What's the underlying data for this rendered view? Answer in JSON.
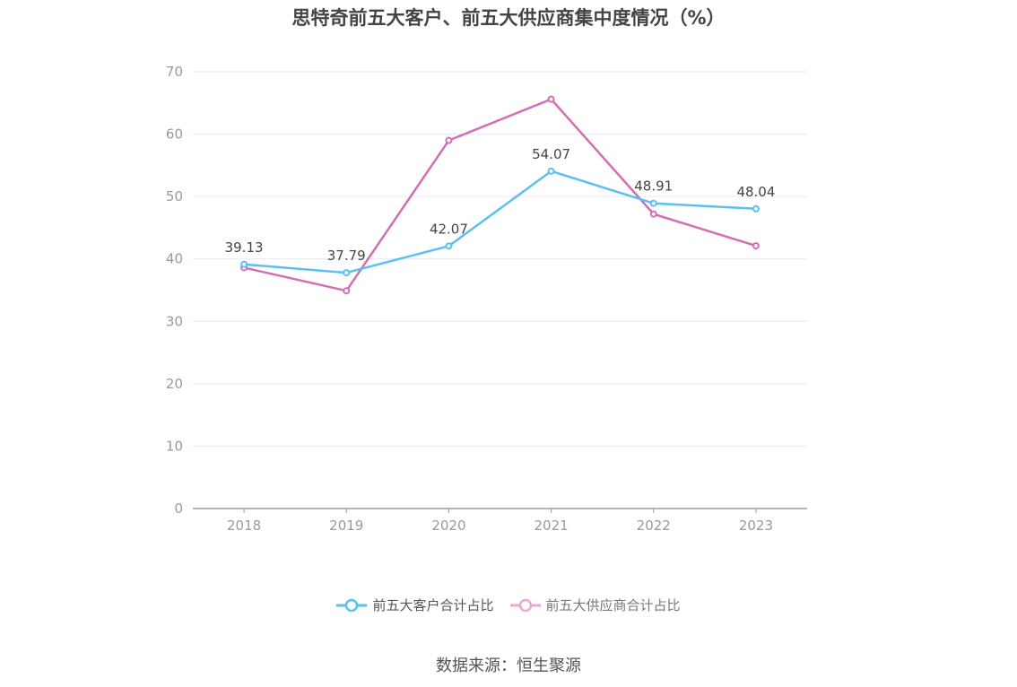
{
  "title": "思特奇前五大客户、前五大供应商集中度情况（%）",
  "source": "数据来源：恒生聚源",
  "chart_data": {
    "type": "line",
    "title": "思特奇前五大客户、前五大供应商集中度情况（%）",
    "categories": [
      "2018",
      "2019",
      "2020",
      "2021",
      "2022",
      "2023"
    ],
    "series": [
      {
        "name": "前五大客户合计占比",
        "color": "#5bc0f0",
        "values": [
          39.13,
          37.79,
          42.07,
          54.07,
          48.91,
          48.04
        ],
        "show_labels": true
      },
      {
        "name": "前五大供应商合计占比",
        "color": "#d56db5",
        "values": [
          38.6,
          34.9,
          59.0,
          65.6,
          47.2,
          42.1
        ],
        "show_labels": false
      }
    ],
    "ylim": [
      0,
      70
    ],
    "yticks": [
      "0",
      "10",
      "20",
      "30",
      "40",
      "50",
      "60",
      "70"
    ],
    "grid": true,
    "legend": "bottom"
  }
}
